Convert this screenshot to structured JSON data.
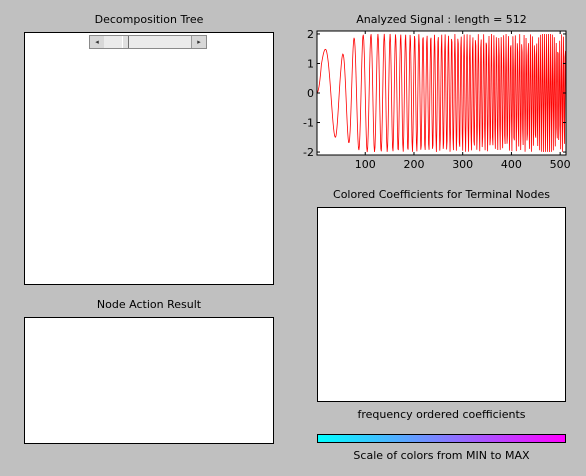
{
  "tree_panel": {
    "title": "Decomposition Tree",
    "scroll_left_arrow": "◂",
    "scroll_right_arrow": "▸"
  },
  "node_action_panel": {
    "title": "Node Action Result"
  },
  "coefficients_panel": {
    "title": "Colored Coefficients for Terminal Nodes",
    "xlabel": "frequency ordered coefficients"
  },
  "colorbar": {
    "label": "Scale of colors from MIN to MAX",
    "min_color": "#00ffff",
    "max_color": "#ff00ff"
  },
  "chart_data": {
    "type": "line",
    "title": "Analyzed Signal : length = 512",
    "xlabel": "",
    "ylabel": "",
    "xlim": [
      1,
      512
    ],
    "ylim": [
      -2.1,
      2.1
    ],
    "x_ticks": [
      100,
      200,
      300,
      400,
      500
    ],
    "y_ticks": [
      2,
      1,
      0,
      -1,
      -2
    ],
    "grid": false,
    "series": [
      {
        "color": "#ff0000",
        "length": 512,
        "description_values": "chirp-like signal, amplitude ~1.5 at start growing to ~2, frequency increasing with x",
        "x": [
          1,
          10,
          20,
          30,
          40,
          50,
          60,
          70,
          80,
          100,
          120,
          150,
          200,
          250,
          300,
          350,
          400,
          450,
          500,
          512
        ],
        "envelope": [
          0,
          1.4,
          1.5,
          1.5,
          1.5,
          1.2,
          1.5,
          1.8,
          1.9,
          2.0,
          2.0,
          2.0,
          2.0,
          2.0,
          2.0,
          2.0,
          2.0,
          2.0,
          2.0,
          2.0
        ]
      }
    ]
  }
}
